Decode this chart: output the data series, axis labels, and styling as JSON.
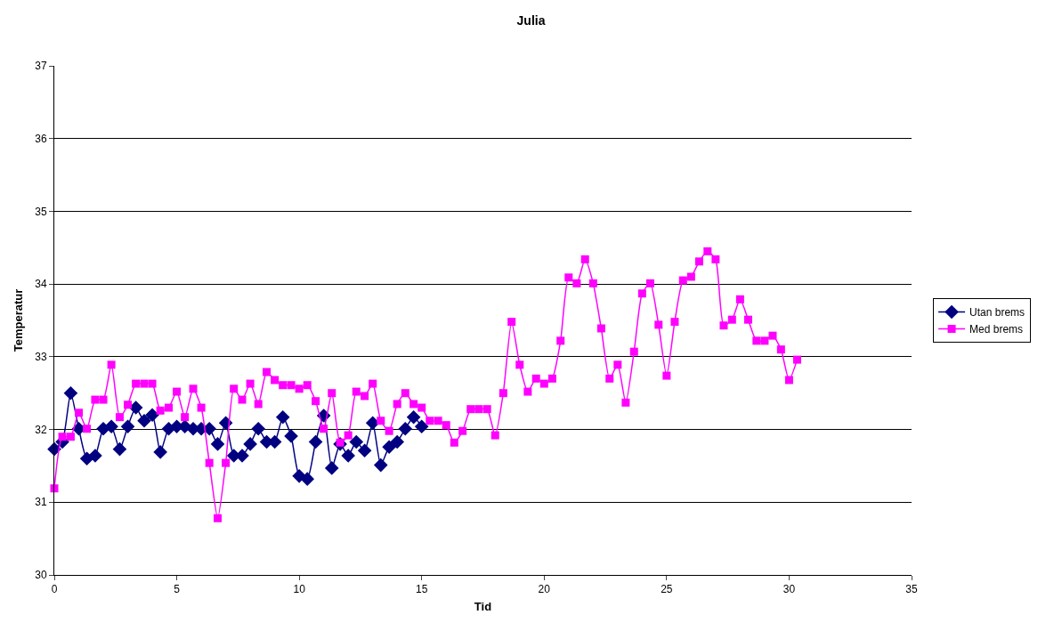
{
  "chart_data": {
    "type": "line",
    "title": "Julia",
    "xlabel": "Tid",
    "ylabel": "Temperatur",
    "x": [
      0,
      0.33,
      0.67,
      1,
      1.33,
      1.67,
      2,
      2.33,
      2.67,
      3,
      3.33,
      3.67,
      4,
      4.33,
      4.67,
      5,
      5.33,
      5.67,
      6,
      6.33,
      6.67,
      7,
      7.33,
      7.67,
      8,
      8.33,
      8.67,
      9,
      9.33,
      9.67,
      10,
      10.33,
      10.67,
      11,
      11.33,
      11.67,
      12,
      12.33,
      12.67,
      13,
      13.33,
      13.67,
      14,
      14.33,
      14.67,
      15,
      15.33,
      15.67,
      16,
      16.33,
      16.67,
      17,
      17.33,
      17.67,
      18,
      18.33,
      18.67,
      19,
      19.33,
      19.67,
      20,
      20.33,
      20.67,
      21,
      21.33,
      21.67,
      22,
      22.33,
      22.67,
      23,
      23.33,
      23.67,
      24,
      24.33,
      24.67,
      25,
      25.33,
      25.67,
      26,
      26.33,
      26.67,
      27,
      27.33,
      27.67,
      28,
      28.33,
      28.67,
      29,
      29.33,
      29.67,
      30,
      30.33
    ],
    "series": [
      {
        "name": "Utan brems",
        "color": "#000080",
        "marker": "diamond",
        "x": [
          0,
          0.33,
          0.67,
          1,
          1.33,
          1.67,
          2,
          2.33,
          2.67,
          3,
          3.33,
          3.67,
          4,
          4.33,
          4.67,
          5,
          5.33,
          5.67,
          6,
          6.33,
          6.67,
          7,
          7.33,
          7.67,
          8,
          8.33,
          8.67,
          9,
          9.33,
          9.67,
          10,
          10.33,
          10.67,
          11,
          11.33,
          11.67,
          12,
          12.33,
          12.67,
          13,
          13.33,
          13.67,
          14,
          14.33,
          14.67,
          15
        ],
        "values": [
          31.73,
          31.83,
          32.5,
          32.01,
          31.6,
          31.64,
          32.01,
          32.04,
          31.73,
          32.04,
          32.3,
          32.12,
          32.2,
          31.69,
          32.01,
          32.04,
          32.04,
          32.01,
          32.01,
          32.01,
          31.8,
          32.09,
          31.64,
          31.64,
          31.8,
          32.01,
          31.83,
          31.83,
          32.17,
          31.91,
          31.36,
          31.32,
          31.83,
          32.19,
          31.47,
          31.8,
          31.64,
          31.83,
          31.71,
          32.09,
          31.51,
          31.76,
          31.83,
          32.01,
          32.17,
          32.04
        ]
      },
      {
        "name": "Med brems",
        "color": "#ff00ff",
        "marker": "square",
        "values": [
          31.19,
          31.9,
          31.9,
          32.23,
          32.01,
          32.41,
          32.41,
          32.89,
          32.17,
          32.34,
          32.63,
          32.63,
          32.63,
          32.26,
          32.3,
          32.52,
          32.17,
          32.56,
          32.3,
          31.54,
          30.78,
          31.54,
          32.56,
          32.41,
          32.63,
          32.35,
          32.79,
          32.68,
          32.61,
          32.61,
          32.56,
          32.61,
          32.39,
          32.01,
          32.5,
          31.82,
          31.92,
          32.52,
          32.46,
          32.63,
          32.12,
          31.98,
          32.35,
          32.5,
          32.35,
          32.3,
          32.12,
          32.12,
          32.06,
          31.82,
          31.98,
          32.28,
          32.28,
          32.28,
          31.92,
          32.5,
          33.48,
          32.89,
          32.52,
          32.7,
          32.63,
          32.7,
          33.22,
          34.09,
          34.01,
          34.34,
          34.01,
          33.39,
          32.7,
          32.89,
          32.37,
          33.07,
          33.87,
          34.01,
          33.44,
          32.74,
          33.48,
          34.05,
          34.1,
          34.31,
          34.45,
          34.34,
          33.43,
          33.51,
          33.79,
          33.51,
          33.22,
          33.22,
          33.29,
          33.1,
          32.68,
          32.96
        ]
      }
    ],
    "xlim": [
      0,
      35
    ],
    "xticks": [
      0,
      5,
      10,
      15,
      20,
      25,
      30,
      35
    ],
    "ylim": [
      30,
      37
    ],
    "yticks": [
      30,
      31,
      32,
      33,
      34,
      35,
      36,
      37
    ],
    "grid": "y",
    "legend": "right",
    "line_style": "solid"
  }
}
